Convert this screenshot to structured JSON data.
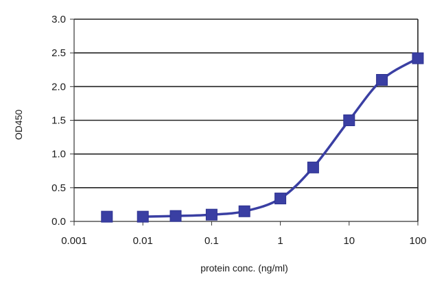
{
  "chart_data": {
    "type": "scatter",
    "title": "",
    "xlabel": "protein conc. (ng/ml)",
    "ylabel": "OD450",
    "x_scale": "log",
    "xlim": [
      0.001,
      100
    ],
    "ylim": [
      0,
      3.0
    ],
    "grid": "horizontal",
    "legend": "none",
    "x_ticks": [
      "0.001",
      "0.01",
      "0.1",
      "1",
      "10",
      "100"
    ],
    "y_ticks": [
      "0.0",
      "0.5",
      "1.0",
      "1.5",
      "2.0",
      "2.5",
      "3.0"
    ],
    "points": [
      {
        "x": 0.003,
        "y": 0.07
      },
      {
        "x": 0.01,
        "y": 0.07
      },
      {
        "x": 0.03,
        "y": 0.08
      },
      {
        "x": 0.1,
        "y": 0.1
      },
      {
        "x": 0.3,
        "y": 0.15
      },
      {
        "x": 1,
        "y": 0.34
      },
      {
        "x": 3,
        "y": 0.8
      },
      {
        "x": 10,
        "y": 1.5
      },
      {
        "x": 30,
        "y": 2.1
      },
      {
        "x": 100,
        "y": 2.42
      }
    ],
    "fit_curve": [
      {
        "x": 0.01,
        "y": 0.07
      },
      {
        "x": 0.03,
        "y": 0.08
      },
      {
        "x": 0.1,
        "y": 0.1
      },
      {
        "x": 0.3,
        "y": 0.15
      },
      {
        "x": 1,
        "y": 0.34
      },
      {
        "x": 3,
        "y": 0.8
      },
      {
        "x": 10,
        "y": 1.5
      },
      {
        "x": 30,
        "y": 2.1
      },
      {
        "x": 100,
        "y": 2.42
      }
    ],
    "colors": {
      "series": "#3a3fa3",
      "grid": "#222222",
      "axis": "#333333"
    }
  }
}
